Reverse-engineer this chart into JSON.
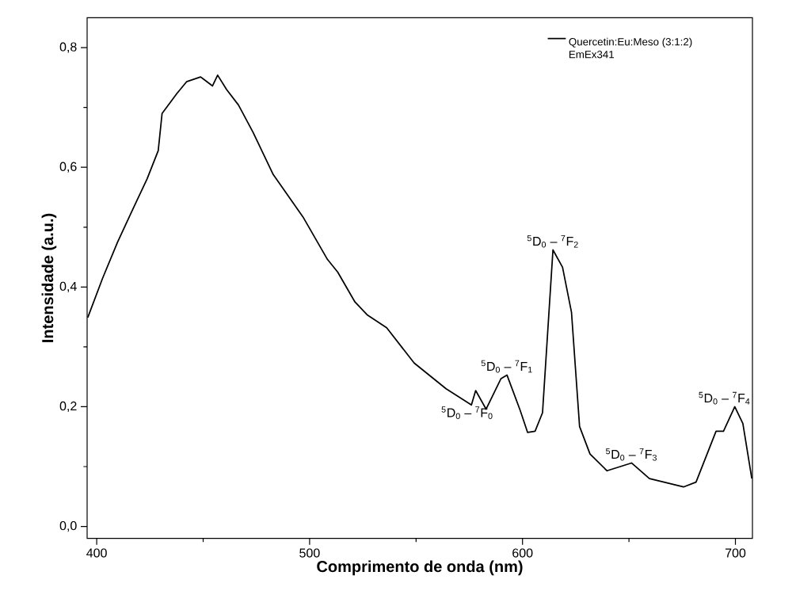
{
  "chart_data": {
    "type": "line",
    "xlabel": "Comprimento de onda (nm)",
    "ylabel": "Intensidade (a.u.)",
    "xlim": [
      395.5,
      708
    ],
    "ylim": [
      -0.02,
      0.85
    ],
    "xticks": [
      400,
      {
        "value": 450,
        "label": null
      },
      500,
      {
        "value": 550,
        "label": null
      },
      600,
      {
        "value": 650,
        "label": null
      },
      700
    ],
    "yticks": [
      {
        "value": 0,
        "label": "0,0"
      },
      {
        "value": 0.1,
        "label": null
      },
      {
        "value": 0.2,
        "label": "0,2"
      },
      {
        "value": 0.3,
        "label": null
      },
      {
        "value": 0.4,
        "label": "0,4"
      },
      {
        "value": 0.5,
        "label": null
      },
      {
        "value": 0.6,
        "label": "0,6"
      },
      {
        "value": 0.7,
        "label": null
      },
      {
        "value": 0.8,
        "label": "0,8"
      }
    ],
    "legend": "top right",
    "series": [
      {
        "name": "Quercetin:Eu:Meso (3:1:2) EmEx341",
        "color": "#000000",
        "x": [
          395.8,
          402.8,
          409.8,
          416.7,
          423.7,
          428.9,
          430.7,
          437.6,
          442.2,
          448.8,
          454.4,
          456.8,
          461.0,
          466.6,
          473.5,
          482.9,
          496.9,
          508.4,
          513.2,
          521.3,
          527.2,
          536.2,
          549.1,
          564.1,
          576.0,
          578.0,
          582.9,
          589.9,
          592.7,
          598.9,
          602.4,
          605.9,
          609.4,
          614.3,
          618.8,
          623.0,
          626.8,
          631.7,
          639.7,
          651.2,
          659.6,
          675.6,
          681.5,
          690.9,
          694.4,
          699.7,
          703.5,
          707.7
        ],
        "values": [
          0.349,
          0.415,
          0.475,
          0.528,
          0.581,
          0.628,
          0.69,
          0.723,
          0.743,
          0.751,
          0.736,
          0.754,
          0.73,
          0.704,
          0.658,
          0.588,
          0.517,
          0.446,
          0.425,
          0.375,
          0.353,
          0.332,
          0.273,
          0.23,
          0.203,
          0.227,
          0.196,
          0.247,
          0.253,
          0.194,
          0.157,
          0.159,
          0.19,
          0.462,
          0.433,
          0.358,
          0.167,
          0.121,
          0.093,
          0.106,
          0.08,
          0.066,
          0.074,
          0.159,
          0.159,
          0.2,
          0.172,
          0.08
        ]
      }
    ],
    "annotations": [
      {
        "text": "$^{5}$D$_{0}$ – $^{7}$F$_{0}$",
        "x": 578.0,
        "y": 0.227
      },
      {
        "text": "$^{5}$D$_{0}$ – $^{7}$F$_{1}$",
        "x": 592.7,
        "y": 0.253
      },
      {
        "text": "$^{5}$D$_{0}$ – $^{7}$F$_{2}$",
        "x": 614.3,
        "y": 0.462
      },
      {
        "text": "$^{5}$D$_{0}$ – $^{7}$F$_{3}$",
        "x": 651.2,
        "y": 0.106
      },
      {
        "text": "$^{5}$D$_{0}$ – $^{7}$F$_{4}$",
        "x": 699.7,
        "y": 0.2
      }
    ]
  }
}
